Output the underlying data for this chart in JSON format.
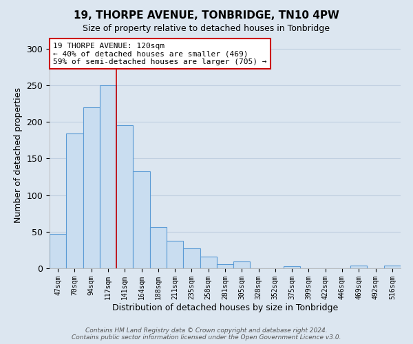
{
  "title": "19, THORPE AVENUE, TONBRIDGE, TN10 4PW",
  "subtitle": "Size of property relative to detached houses in Tonbridge",
  "xlabel": "Distribution of detached houses by size in Tonbridge",
  "ylabel": "Number of detached properties",
  "bar_labels": [
    "47sqm",
    "70sqm",
    "94sqm",
    "117sqm",
    "141sqm",
    "164sqm",
    "188sqm",
    "211sqm",
    "235sqm",
    "258sqm",
    "281sqm",
    "305sqm",
    "328sqm",
    "352sqm",
    "375sqm",
    "399sqm",
    "422sqm",
    "446sqm",
    "469sqm",
    "492sqm",
    "516sqm"
  ],
  "bar_values": [
    47,
    184,
    220,
    250,
    195,
    132,
    56,
    38,
    27,
    16,
    6,
    9,
    0,
    0,
    3,
    0,
    0,
    0,
    4,
    0,
    4
  ],
  "bar_color": "#c9ddf0",
  "bar_edge_color": "#5b9bd5",
  "background_color": "#dce6f0",
  "plot_bg_color": "#dce6f0",
  "grid_color": "#c0cfe0",
  "annotation_box_text": "19 THORPE AVENUE: 120sqm\n← 40% of detached houses are smaller (469)\n59% of semi-detached houses are larger (705) →",
  "annotation_box_color": "#ffffff",
  "annotation_box_edge_color": "#cc0000",
  "red_line_index": 3.5,
  "ylim": [
    0,
    310
  ],
  "yticks": [
    0,
    50,
    100,
    150,
    200,
    250,
    300
  ],
  "footer_line1": "Contains HM Land Registry data © Crown copyright and database right 2024.",
  "footer_line2": "Contains public sector information licensed under the Open Government Licence v3.0."
}
